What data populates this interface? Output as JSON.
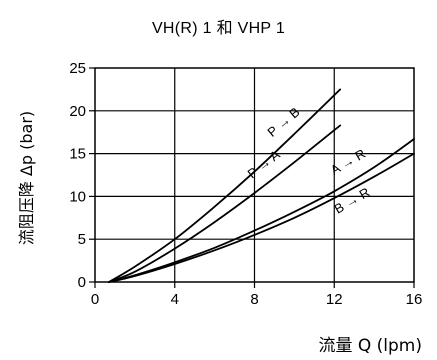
{
  "chart_data": {
    "type": "line",
    "title": "VH(R) 1 和  VHP 1",
    "xlabel": "流量 Q (lpm)",
    "ylabel": "流阻压降  Δp (bar)",
    "xlim": [
      0,
      16
    ],
    "ylim": [
      0,
      25
    ],
    "xticks": [
      0,
      4,
      8,
      12,
      16
    ],
    "yticks": [
      0,
      5,
      10,
      15,
      20,
      25
    ],
    "grid": true,
    "series": [
      {
        "name": "P → B",
        "x": [
          0.7,
          2,
          4,
          6,
          8,
          10,
          12.3
        ],
        "y": [
          0,
          1.8,
          5.0,
          8.8,
          12.9,
          17.3,
          22.5
        ]
      },
      {
        "name": "P → A",
        "x": [
          0.7,
          2,
          4,
          6,
          8,
          10,
          12.3
        ],
        "y": [
          0,
          1.2,
          3.9,
          7.0,
          10.4,
          14.0,
          18.3
        ]
      },
      {
        "name": "A → R",
        "x": [
          0.7,
          2,
          4,
          6,
          8,
          10,
          12,
          14,
          16
        ],
        "y": [
          0,
          0.8,
          2.3,
          4.0,
          6.0,
          8.2,
          10.6,
          13.4,
          16.7
        ]
      },
      {
        "name": "B → R",
        "x": [
          0.7,
          2,
          4,
          6,
          8,
          10,
          12,
          14,
          16
        ],
        "y": [
          0,
          0.7,
          2.1,
          3.7,
          5.5,
          7.5,
          9.8,
          12.3,
          15.0
        ]
      }
    ]
  }
}
